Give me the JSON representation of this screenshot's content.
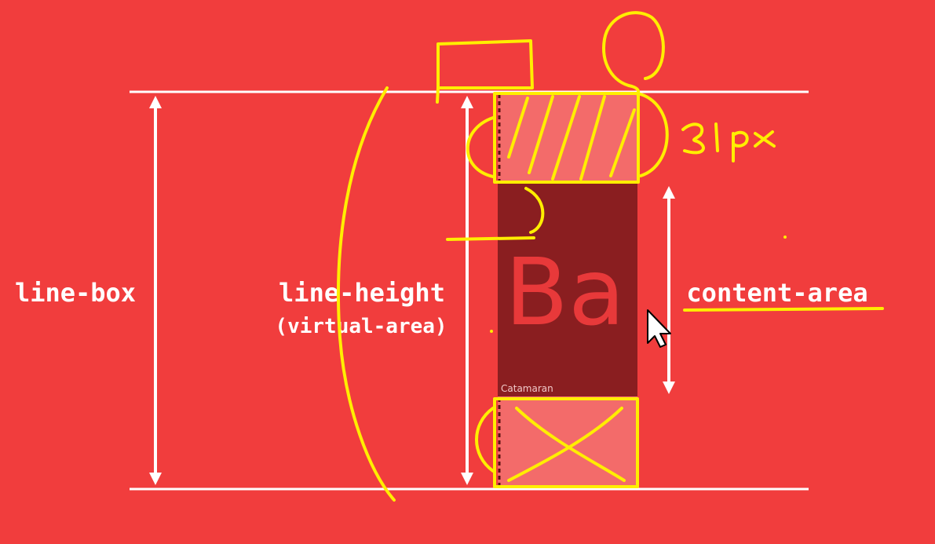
{
  "diagram": {
    "labels": {
      "line_box": "line-box",
      "line_height": "line-height",
      "virtual_area": "(virtual-area)",
      "content_area": "content-area",
      "glyph": "Ba",
      "font_name": "Catamaran"
    },
    "annotations": {
      "measurement": "31px"
    },
    "colors": {
      "background": "#f13d3d",
      "line": "#ffffff",
      "content_area": "#8a1e20",
      "half_leading": "#f36b6a",
      "glyph": "#e8393a",
      "annotation": "#ffee00"
    },
    "icons": {
      "cursor": "mouse-pointer-icon"
    }
  }
}
